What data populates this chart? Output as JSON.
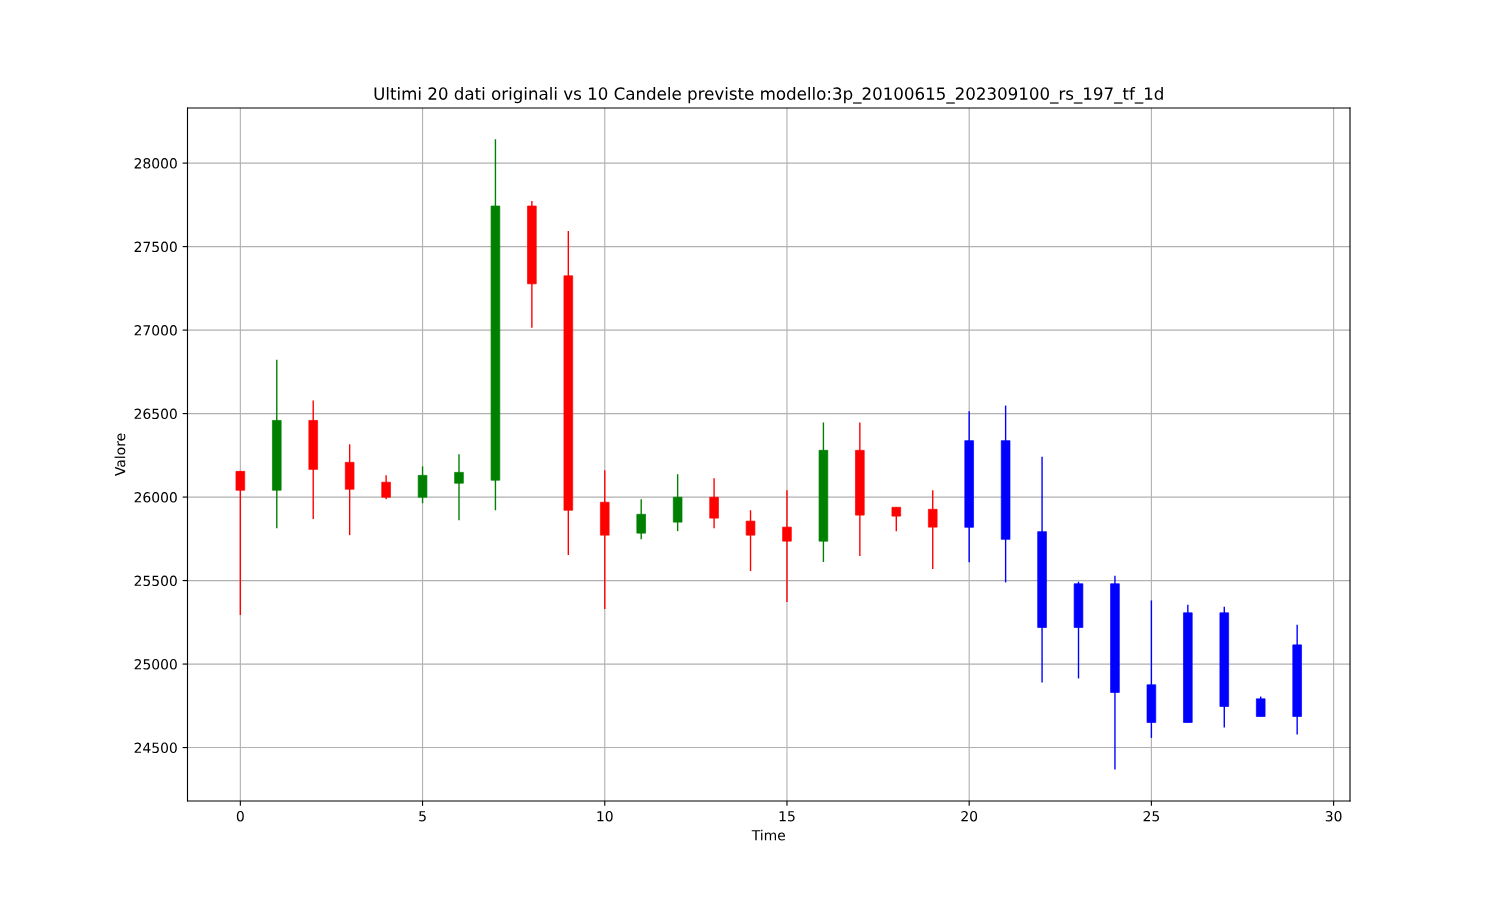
{
  "chart_data": {
    "type": "candlestick",
    "title": "Ultimi 20 dati originali vs 10 Candele previste modello:3p_20100615_202309100_rs_197_tf_1d",
    "xlabel": "Time",
    "ylabel": "Valore",
    "x": [
      0,
      1,
      2,
      3,
      4,
      5,
      6,
      7,
      8,
      9,
      10,
      11,
      12,
      13,
      14,
      15,
      16,
      17,
      18,
      19,
      20,
      21,
      22,
      23,
      24,
      25,
      26,
      27,
      28,
      29
    ],
    "ohlc": [
      [
        26154,
        26154,
        25294,
        26041
      ],
      [
        26041,
        26823,
        25814,
        26459
      ],
      [
        26459,
        26578,
        25868,
        26166
      ],
      [
        26208,
        26316,
        25772,
        26047
      ],
      [
        26089,
        26130,
        25987,
        25999
      ],
      [
        25999,
        26184,
        25963,
        26130
      ],
      [
        26083,
        26256,
        25862,
        26148
      ],
      [
        26101,
        28143,
        25921,
        27743
      ],
      [
        27743,
        27773,
        27014,
        27277
      ],
      [
        27325,
        27594,
        25653,
        25921
      ],
      [
        25969,
        26160,
        25330,
        25772
      ],
      [
        25784,
        25987,
        25748,
        25897
      ],
      [
        25850,
        26137,
        25796,
        25999
      ],
      [
        25999,
        26113,
        25814,
        25874
      ],
      [
        25856,
        25921,
        25557,
        25772
      ],
      [
        25820,
        26041,
        25372,
        25736
      ],
      [
        25736,
        26447,
        25611,
        26280
      ],
      [
        26280,
        26447,
        25647,
        25892
      ],
      [
        25939,
        25939,
        25796,
        25886
      ],
      [
        25927,
        26041,
        25569,
        25820
      ],
      [
        26338,
        26514,
        25609,
        25819
      ],
      [
        26338,
        26548,
        25489,
        25747
      ],
      [
        25793,
        26242,
        24890,
        25219
      ],
      [
        25481,
        25493,
        24914,
        25219
      ],
      [
        25481,
        25529,
        24368,
        24830
      ],
      [
        24876,
        25381,
        24558,
        24650
      ],
      [
        25307,
        25355,
        24650,
        24650
      ],
      [
        25307,
        25343,
        24620,
        24746
      ],
      [
        24792,
        24806,
        24686,
        24686
      ],
      [
        25115,
        25235,
        24578,
        24686
      ]
    ],
    "colors": [
      "#ff0000",
      "#008000",
      "#ff0000",
      "#ff0000",
      "#ff0000",
      "#008000",
      "#008000",
      "#008000",
      "#ff0000",
      "#ff0000",
      "#ff0000",
      "#008000",
      "#008000",
      "#ff0000",
      "#ff0000",
      "#ff0000",
      "#008000",
      "#ff0000",
      "#ff0000",
      "#ff0000",
      "#0000ff",
      "#0000ff",
      "#0000ff",
      "#0000ff",
      "#0000ff",
      "#0000ff",
      "#0000ff",
      "#0000ff",
      "#0000ff",
      "#0000ff"
    ],
    "xlim": [
      -1.45,
      30.45
    ],
    "ylim": [
      24180,
      28330
    ],
    "xticks": [
      0,
      5,
      10,
      15,
      20,
      25,
      30
    ],
    "yticks": [
      24500,
      25000,
      25500,
      26000,
      26500,
      27000,
      27500,
      28000
    ],
    "grid": true
  }
}
